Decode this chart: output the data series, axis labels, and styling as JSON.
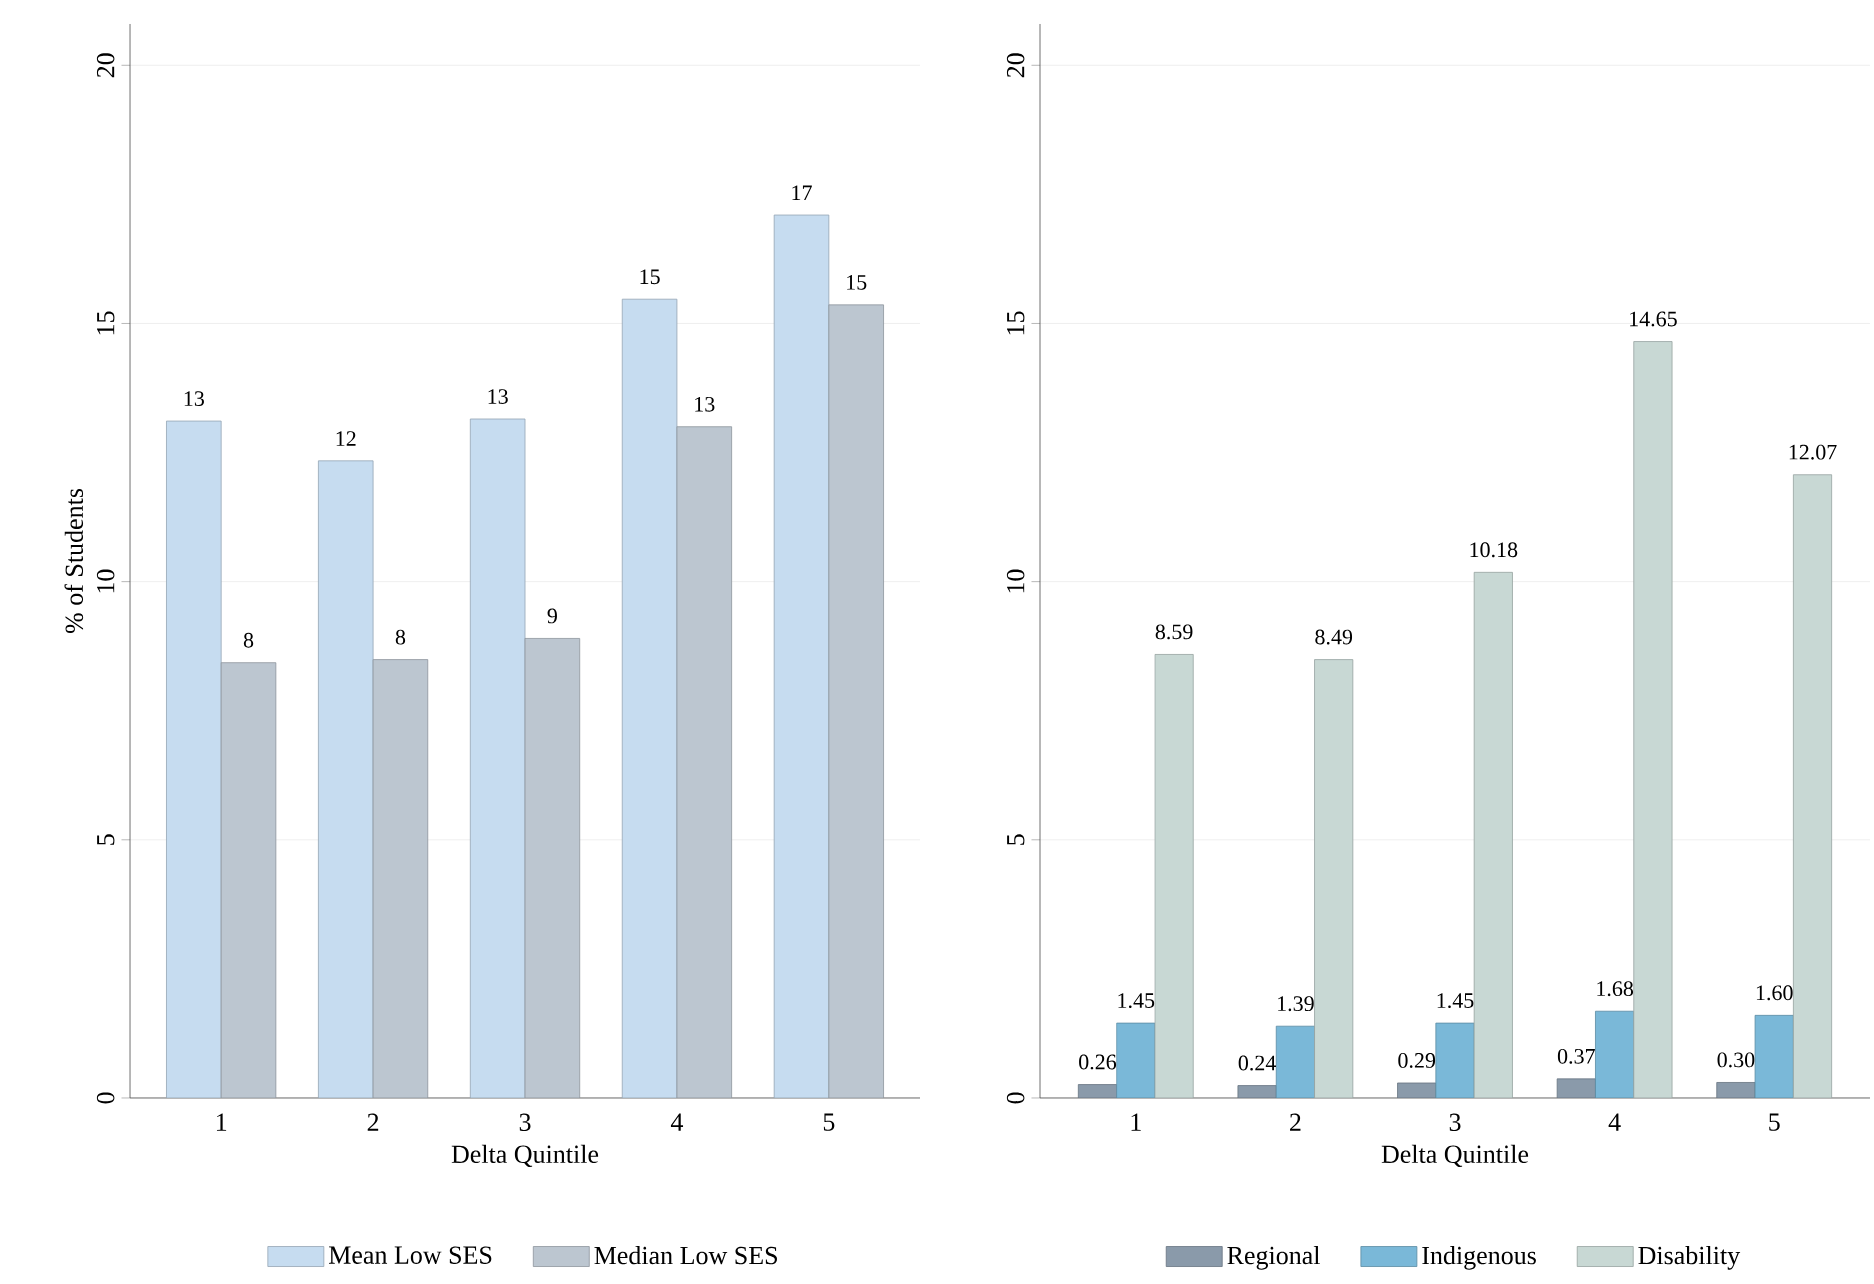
{
  "chart_data": [
    {
      "type": "bar",
      "ylabel": "% of Students",
      "xlabel": "Delta Quintile",
      "categories": [
        "1",
        "2",
        "3",
        "4",
        "5"
      ],
      "ylim": [
        0,
        20.8
      ],
      "yticks": [
        0,
        5,
        10,
        15,
        20
      ],
      "grid": "y",
      "legend": "bottom",
      "series": [
        {
          "name": "Mean Low SES",
          "color": "#c6dcf0",
          "values": [
            13.11,
            12.34,
            13.15,
            15.47,
            17.1
          ],
          "value_labels": [
            "13",
            "12",
            "13",
            "15",
            "17"
          ]
        },
        {
          "name": "Median Low SES",
          "color": "#bcc6d0",
          "values": [
            8.43,
            8.49,
            8.9,
            13.0,
            15.36
          ],
          "value_labels": [
            "8",
            "8",
            "9",
            "13",
            "15"
          ]
        }
      ]
    },
    {
      "type": "bar",
      "xlabel": "Delta Quintile",
      "categories": [
        "1",
        "2",
        "3",
        "4",
        "5"
      ],
      "ylim": [
        0,
        20.8
      ],
      "yticks": [
        0,
        5,
        10,
        15,
        20
      ],
      "grid": "y",
      "legend": "bottom",
      "series": [
        {
          "name": "Regional",
          "color": "#8a9aaa",
          "values": [
            0.26,
            0.24,
            0.29,
            0.37,
            0.3
          ],
          "value_labels": [
            "0.26",
            "0.24",
            "0.29",
            "0.37",
            "0.30"
          ]
        },
        {
          "name": "Indigenous",
          "color": "#7ab8d8",
          "values": [
            1.45,
            1.39,
            1.45,
            1.68,
            1.6
          ],
          "value_labels": [
            "1.45",
            "1.39",
            "1.45",
            "1.68",
            "1.60"
          ]
        },
        {
          "name": "Disability",
          "color": "#c8d8d4",
          "values": [
            8.59,
            8.49,
            10.18,
            14.65,
            12.07
          ],
          "value_labels": [
            "8.59",
            "8.49",
            "10.18",
            "14.65",
            "12.07"
          ]
        }
      ]
    }
  ]
}
